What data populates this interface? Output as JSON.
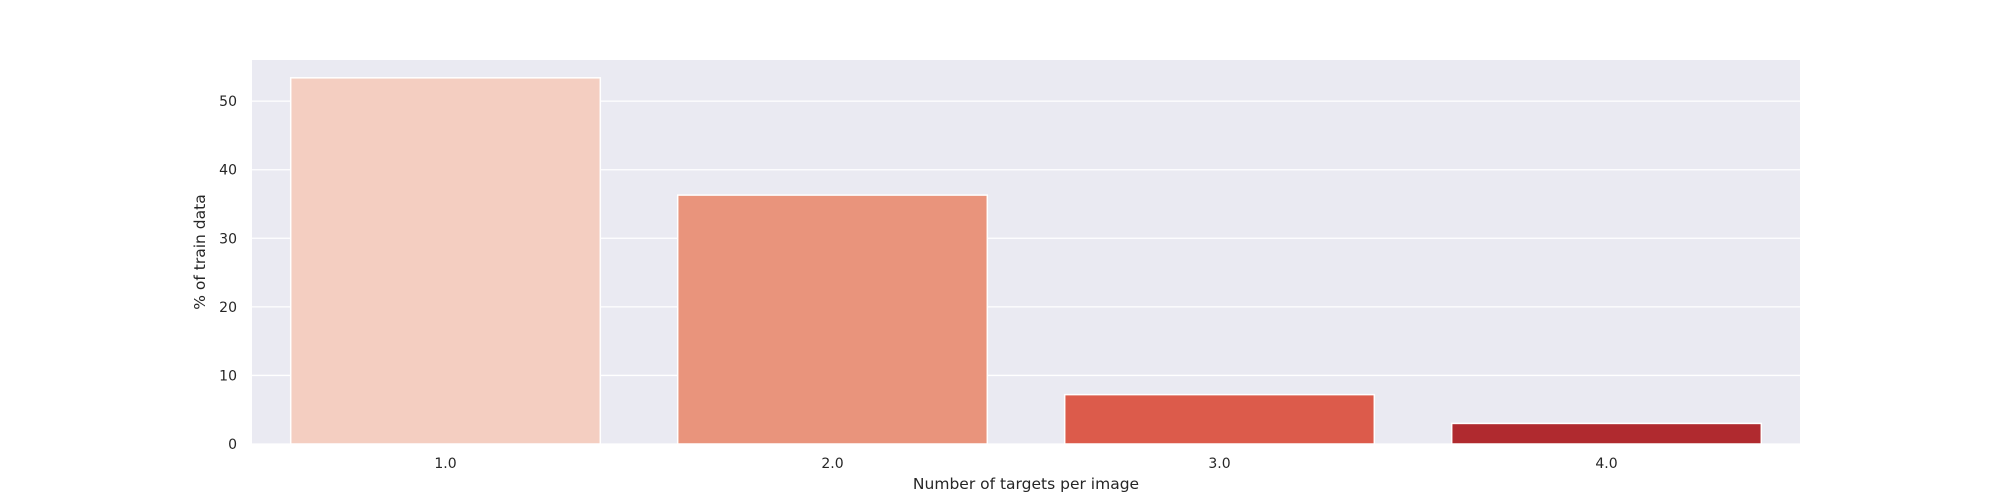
{
  "chart_data": {
    "type": "bar",
    "title": "",
    "xlabel": "Number of targets per image",
    "ylabel": "% of train data",
    "categories": [
      "1.0",
      "2.0",
      "3.0",
      "4.0"
    ],
    "values": [
      53.4,
      36.3,
      7.2,
      3.0
    ],
    "colors": [
      "#f4cec1",
      "#e9947c",
      "#dc5b4b",
      "#b02a2f"
    ],
    "ylim": [
      0,
      56
    ],
    "yticks": [
      0,
      10,
      20,
      30,
      40,
      50
    ],
    "grid": true,
    "legend": "none",
    "plot_background": "#eaeaf2",
    "gridline_color": "#ffffff"
  }
}
